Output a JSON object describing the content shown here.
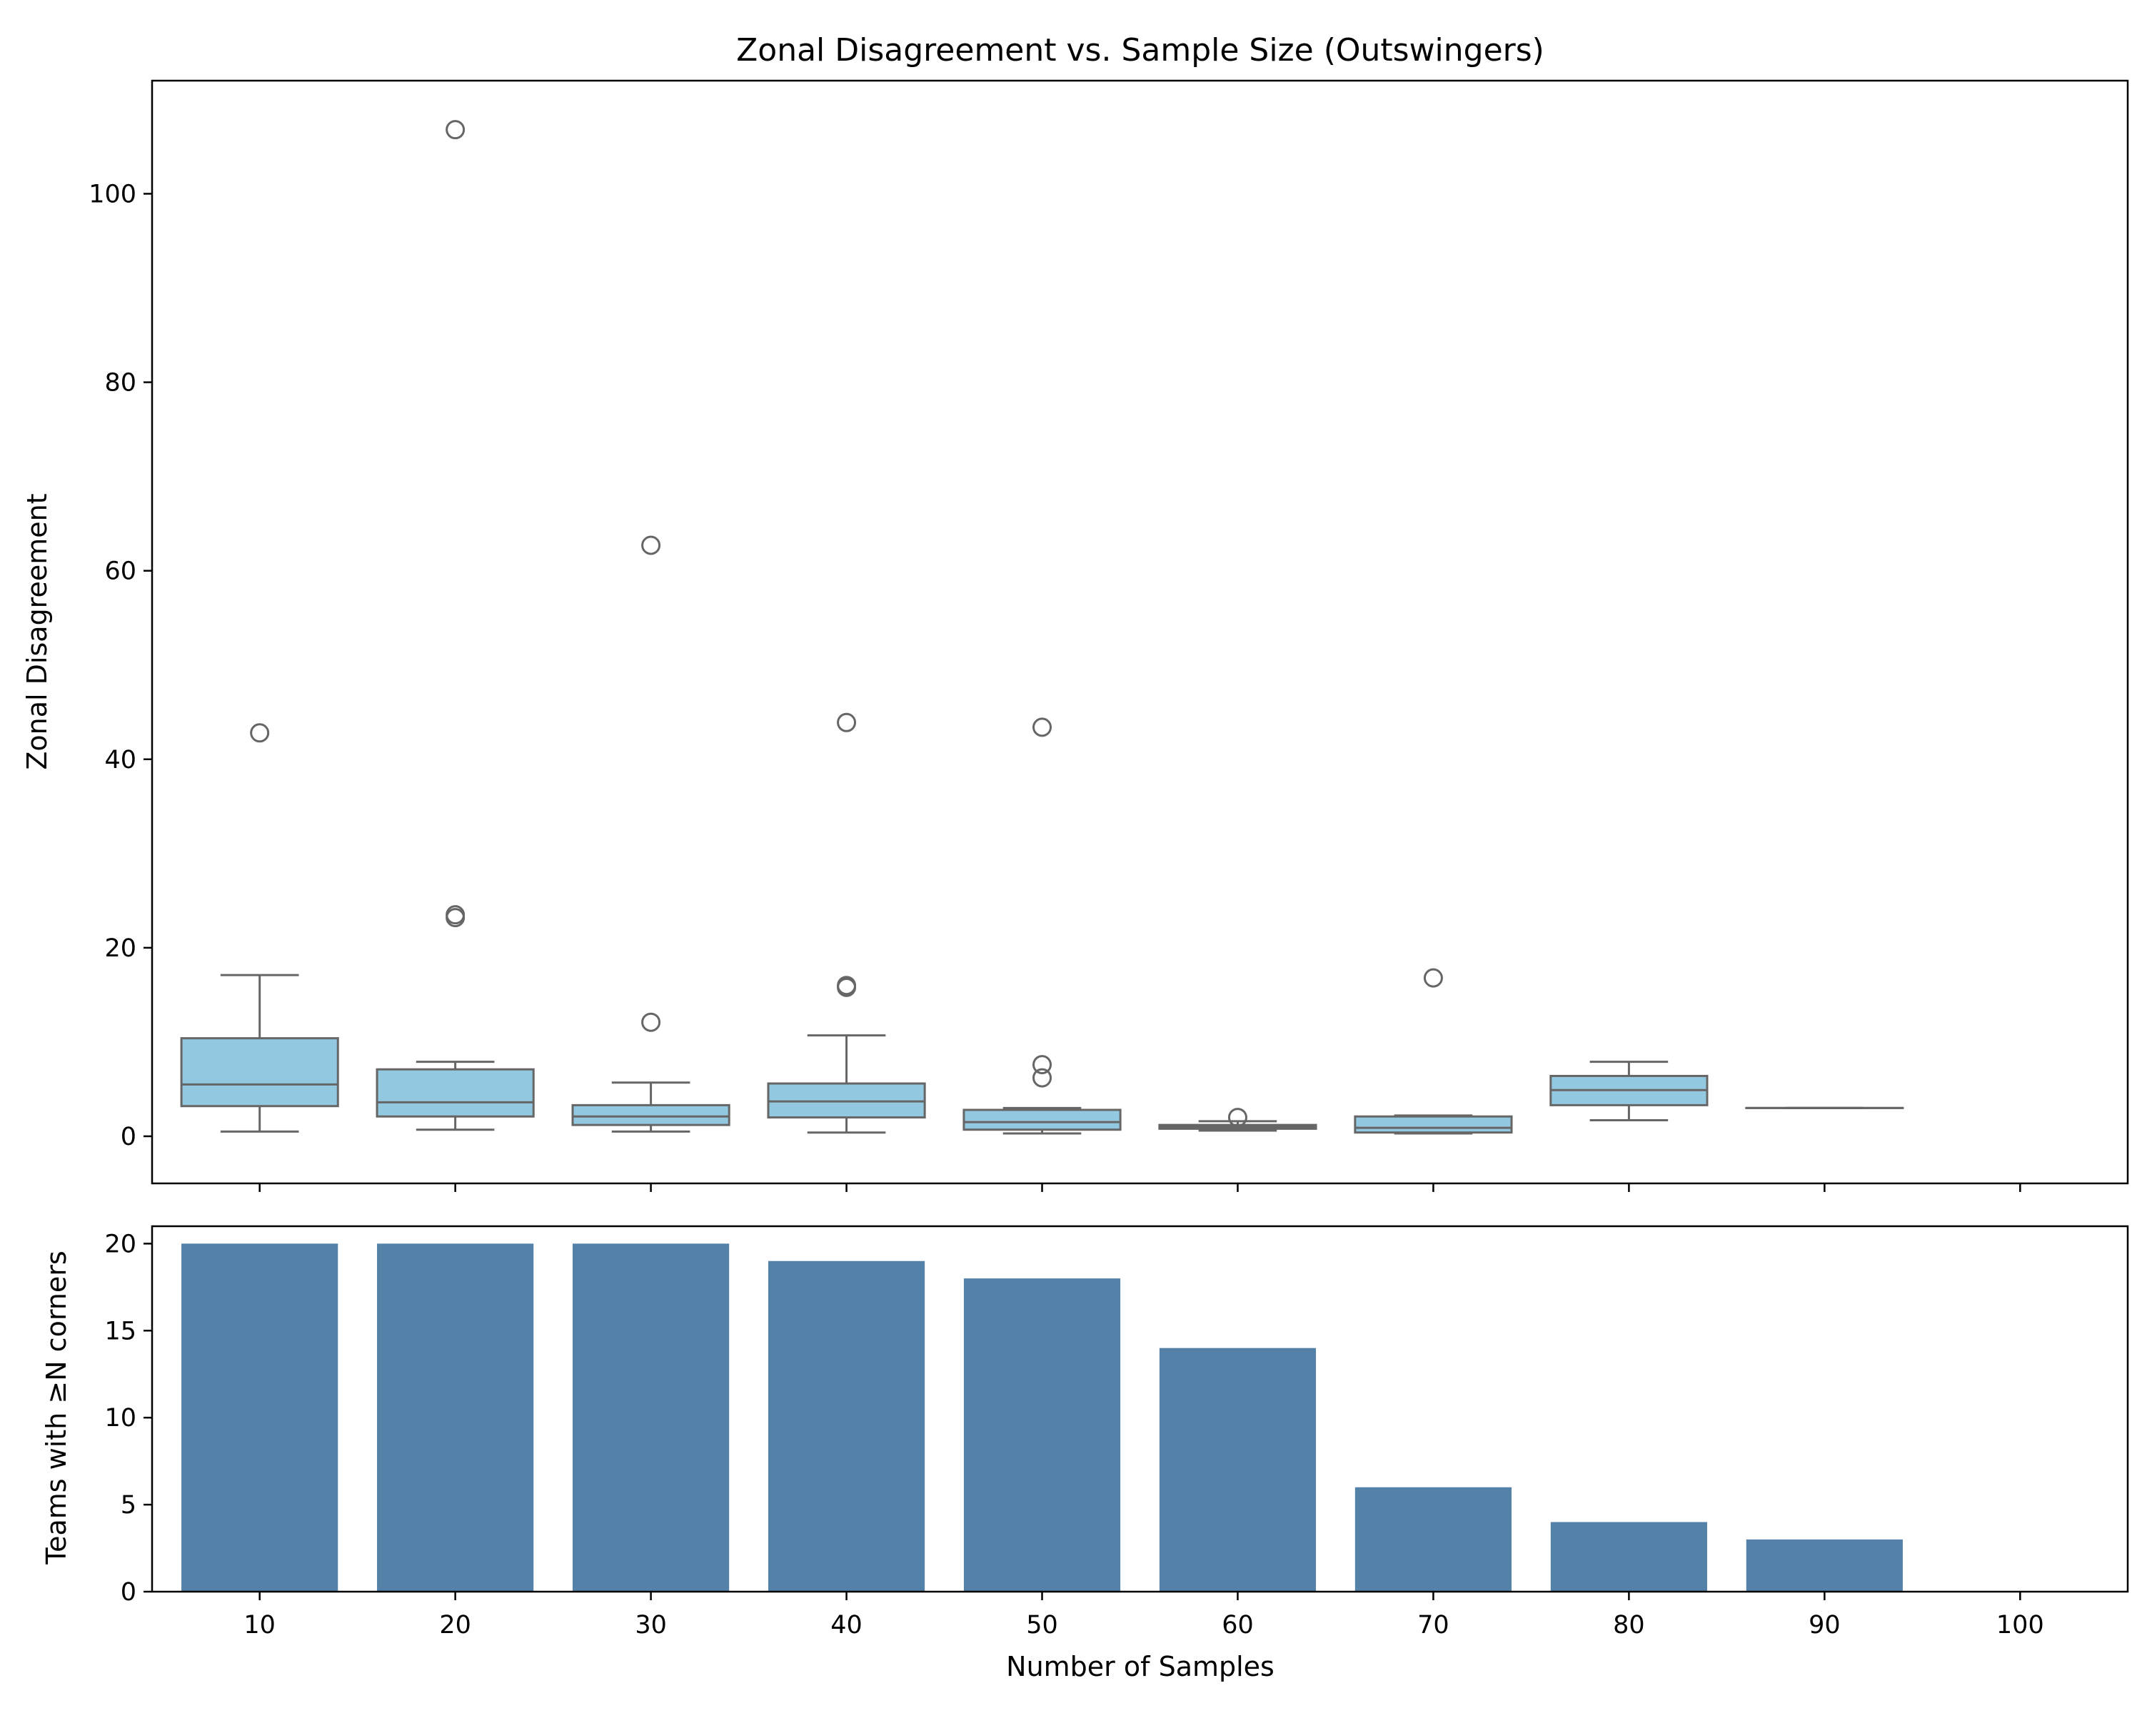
{
  "chart_data": [
    {
      "type": "box",
      "title": "Zonal Disagreement vs. Sample Size (Outswingers)",
      "xlabel": "",
      "ylabel": "Zonal Disagreement",
      "ylim": [
        -5,
        112
      ],
      "yticks": [
        0,
        20,
        40,
        60,
        80,
        100
      ],
      "categories": [
        "10",
        "20",
        "30",
        "40",
        "50",
        "60",
        "70",
        "80",
        "90",
        "100"
      ],
      "box_color": "#92c9e1",
      "line_color": "#666666",
      "boxes": [
        {
          "category": "10",
          "whisker_low": 0.5,
          "q1": 3.2,
          "median": 5.5,
          "q3": 10.4,
          "whisker_high": 17.1,
          "outliers": [
            42.8
          ]
        },
        {
          "category": "20",
          "whisker_low": 0.7,
          "q1": 2.1,
          "median": 3.6,
          "q3": 7.1,
          "whisker_high": 7.9,
          "outliers": [
            23.2,
            23.5,
            106.8
          ]
        },
        {
          "category": "30",
          "whisker_low": 0.5,
          "q1": 1.2,
          "median": 2.1,
          "q3": 3.3,
          "whisker_high": 5.7,
          "outliers": [
            12.1,
            62.7
          ]
        },
        {
          "category": "40",
          "whisker_low": 0.4,
          "q1": 2.0,
          "median": 3.7,
          "q3": 5.6,
          "whisker_high": 10.7,
          "outliers": [
            15.8,
            16.0,
            43.9
          ]
        },
        {
          "category": "50",
          "whisker_low": 0.3,
          "q1": 0.7,
          "median": 1.5,
          "q3": 2.8,
          "whisker_high": 3.0,
          "outliers": [
            6.2,
            7.6,
            43.4
          ]
        },
        {
          "category": "60",
          "whisker_low": 0.6,
          "q1": 0.8,
          "median": 1.0,
          "q3": 1.2,
          "whisker_high": 1.6,
          "outliers": [
            2.0
          ]
        },
        {
          "category": "70",
          "whisker_low": 0.3,
          "q1": 0.4,
          "median": 0.9,
          "q3": 2.1,
          "whisker_high": 2.2,
          "outliers": [
            16.8
          ]
        },
        {
          "category": "80",
          "whisker_low": 1.7,
          "q1": 3.3,
          "median": 4.9,
          "q3": 6.4,
          "whisker_high": 7.9,
          "outliers": []
        },
        {
          "category": "90",
          "whisker_low": 3.0,
          "q1": 3.0,
          "median": 3.0,
          "q3": 3.0,
          "whisker_high": 3.0,
          "outliers": []
        },
        {
          "category": "100",
          "empty": true
        }
      ]
    },
    {
      "type": "bar",
      "title": "",
      "xlabel": "Number of Samples",
      "ylabel": "Teams with ≥N corners",
      "ylim": [
        0,
        21
      ],
      "yticks": [
        0,
        5,
        10,
        15,
        20
      ],
      "categories": [
        "10",
        "20",
        "30",
        "40",
        "50",
        "60",
        "70",
        "80",
        "90",
        "100"
      ],
      "values": [
        20,
        20,
        20,
        19,
        18,
        14,
        6,
        4,
        3,
        0
      ],
      "bar_color": "#5381a7"
    }
  ]
}
